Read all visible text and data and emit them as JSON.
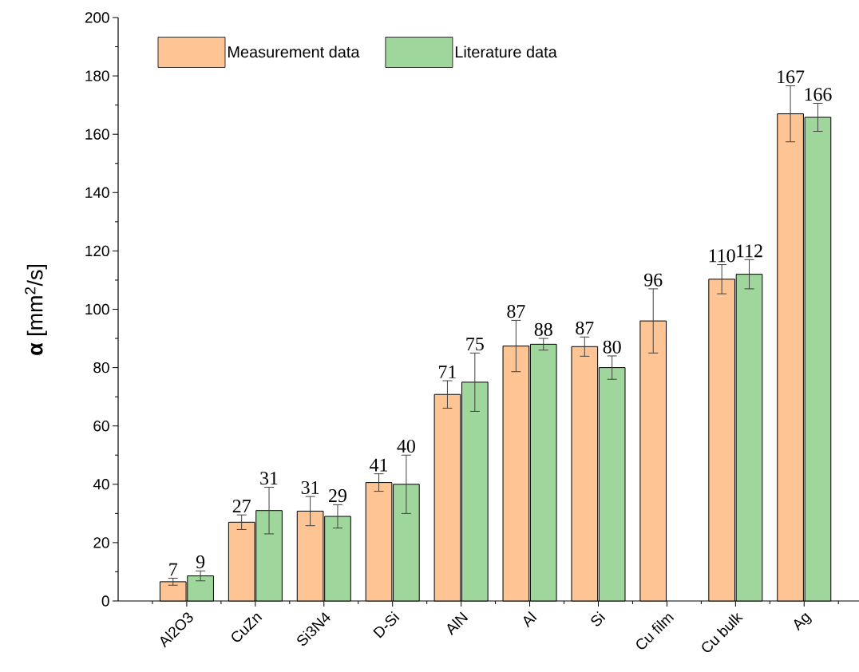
{
  "chart_data": {
    "type": "bar",
    "ylabel": "**α** [mm$^{2}$/s]",
    "categories": [
      "Al2O3",
      "CuZn",
      "Si3N4",
      "D-Si",
      "AlN",
      "Al",
      "Si",
      "Cu film",
      "Cu bulk",
      "Ag"
    ],
    "series": [
      {
        "name": "Measurement data",
        "color": "#fec493",
        "values": [
          6.6,
          27,
          30.8,
          40.6,
          70.8,
          87.4,
          87.2,
          96,
          110.3,
          167
        ],
        "errors": [
          1.2,
          2.5,
          5,
          3,
          4.7,
          8.8,
          3.3,
          11,
          5,
          9.6
        ],
        "value_labels": [
          "7",
          "27",
          "31",
          "41",
          "71",
          "87",
          "87",
          "96",
          "110",
          "167"
        ]
      },
      {
        "name": "Literature data",
        "color": "#9fd69b",
        "values": [
          8.6,
          31,
          29,
          40,
          75,
          88,
          80,
          null,
          112,
          165.8
        ],
        "errors": [
          1.7,
          8,
          4,
          10,
          10,
          2,
          4,
          null,
          5,
          4.8
        ],
        "value_labels": [
          "9",
          "31",
          "29",
          "40",
          "75",
          "88",
          "80",
          null,
          "112",
          "166"
        ]
      }
    ],
    "ylim": [
      0,
      200
    ],
    "yticks": [
      0,
      20,
      40,
      60,
      80,
      100,
      120,
      140,
      160,
      180,
      200
    ],
    "legend": "top left",
    "grid": false
  }
}
